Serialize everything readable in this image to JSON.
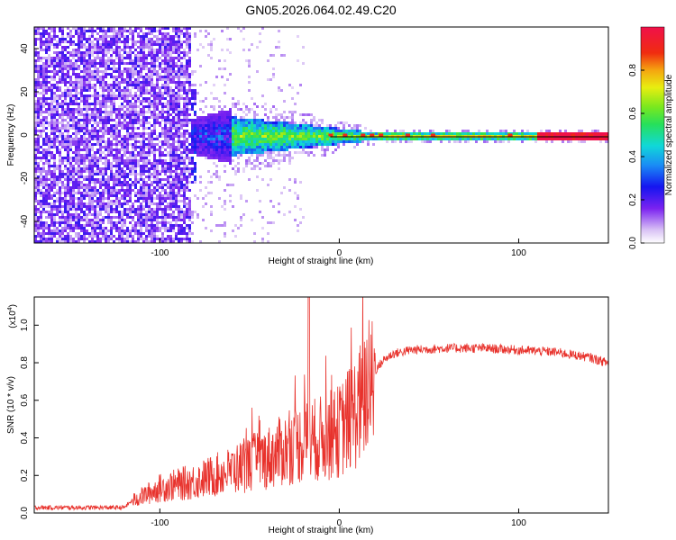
{
  "title": "GN05.2026.064.02.49.C20",
  "chart_data": [
    {
      "type": "heatmap",
      "name": "spectrogram",
      "xlabel": "Height of straight line (km)",
      "ylabel": "Frequency (Hz)",
      "xlim": [
        -170,
        150
      ],
      "ylim": [
        -50,
        50
      ],
      "xticks": [
        -100,
        0,
        100
      ],
      "yticks": [
        -40,
        -20,
        0,
        20,
        40
      ],
      "colorbar": {
        "label": "Normalized spectral amplitude",
        "range": [
          0.0,
          1.0
        ],
        "ticks": [
          "0.0",
          "0.2",
          "0.4",
          "0.6",
          "0.8"
        ]
      },
      "features": {
        "noise_region_end_km": -84,
        "carrier_line_hz": 0,
        "strong_signal_start_km": 20
      }
    },
    {
      "type": "line",
      "name": "snr",
      "color": "#e8322c",
      "xlabel": "Height of straight line (km)",
      "ylabel": "SNR (10 * v/v)",
      "yscale_label": "(x10",
      "yscale_exp": "4",
      "xlim": [
        -170,
        150
      ],
      "ylim": [
        0.0,
        1.15
      ],
      "xticks": [
        -100,
        0,
        100
      ],
      "yticks": [
        "0.0",
        "0.2",
        "0.4",
        "0.6",
        "0.8",
        "1.0"
      ],
      "envelope": {
        "x": [
          -170,
          -120,
          -115,
          -100,
          -80,
          -60,
          -50,
          -40,
          -30,
          -20,
          -10,
          0,
          10,
          20,
          25,
          30,
          40,
          60,
          80,
          100,
          120,
          140,
          150
        ],
        "y": [
          0.03,
          0.03,
          0.07,
          0.14,
          0.18,
          0.24,
          0.28,
          0.31,
          0.36,
          0.4,
          0.42,
          0.46,
          0.58,
          0.76,
          0.82,
          0.85,
          0.87,
          0.88,
          0.88,
          0.87,
          0.86,
          0.83,
          0.8
        ]
      },
      "peak": {
        "x": -17,
        "y": 1.15
      }
    }
  ]
}
